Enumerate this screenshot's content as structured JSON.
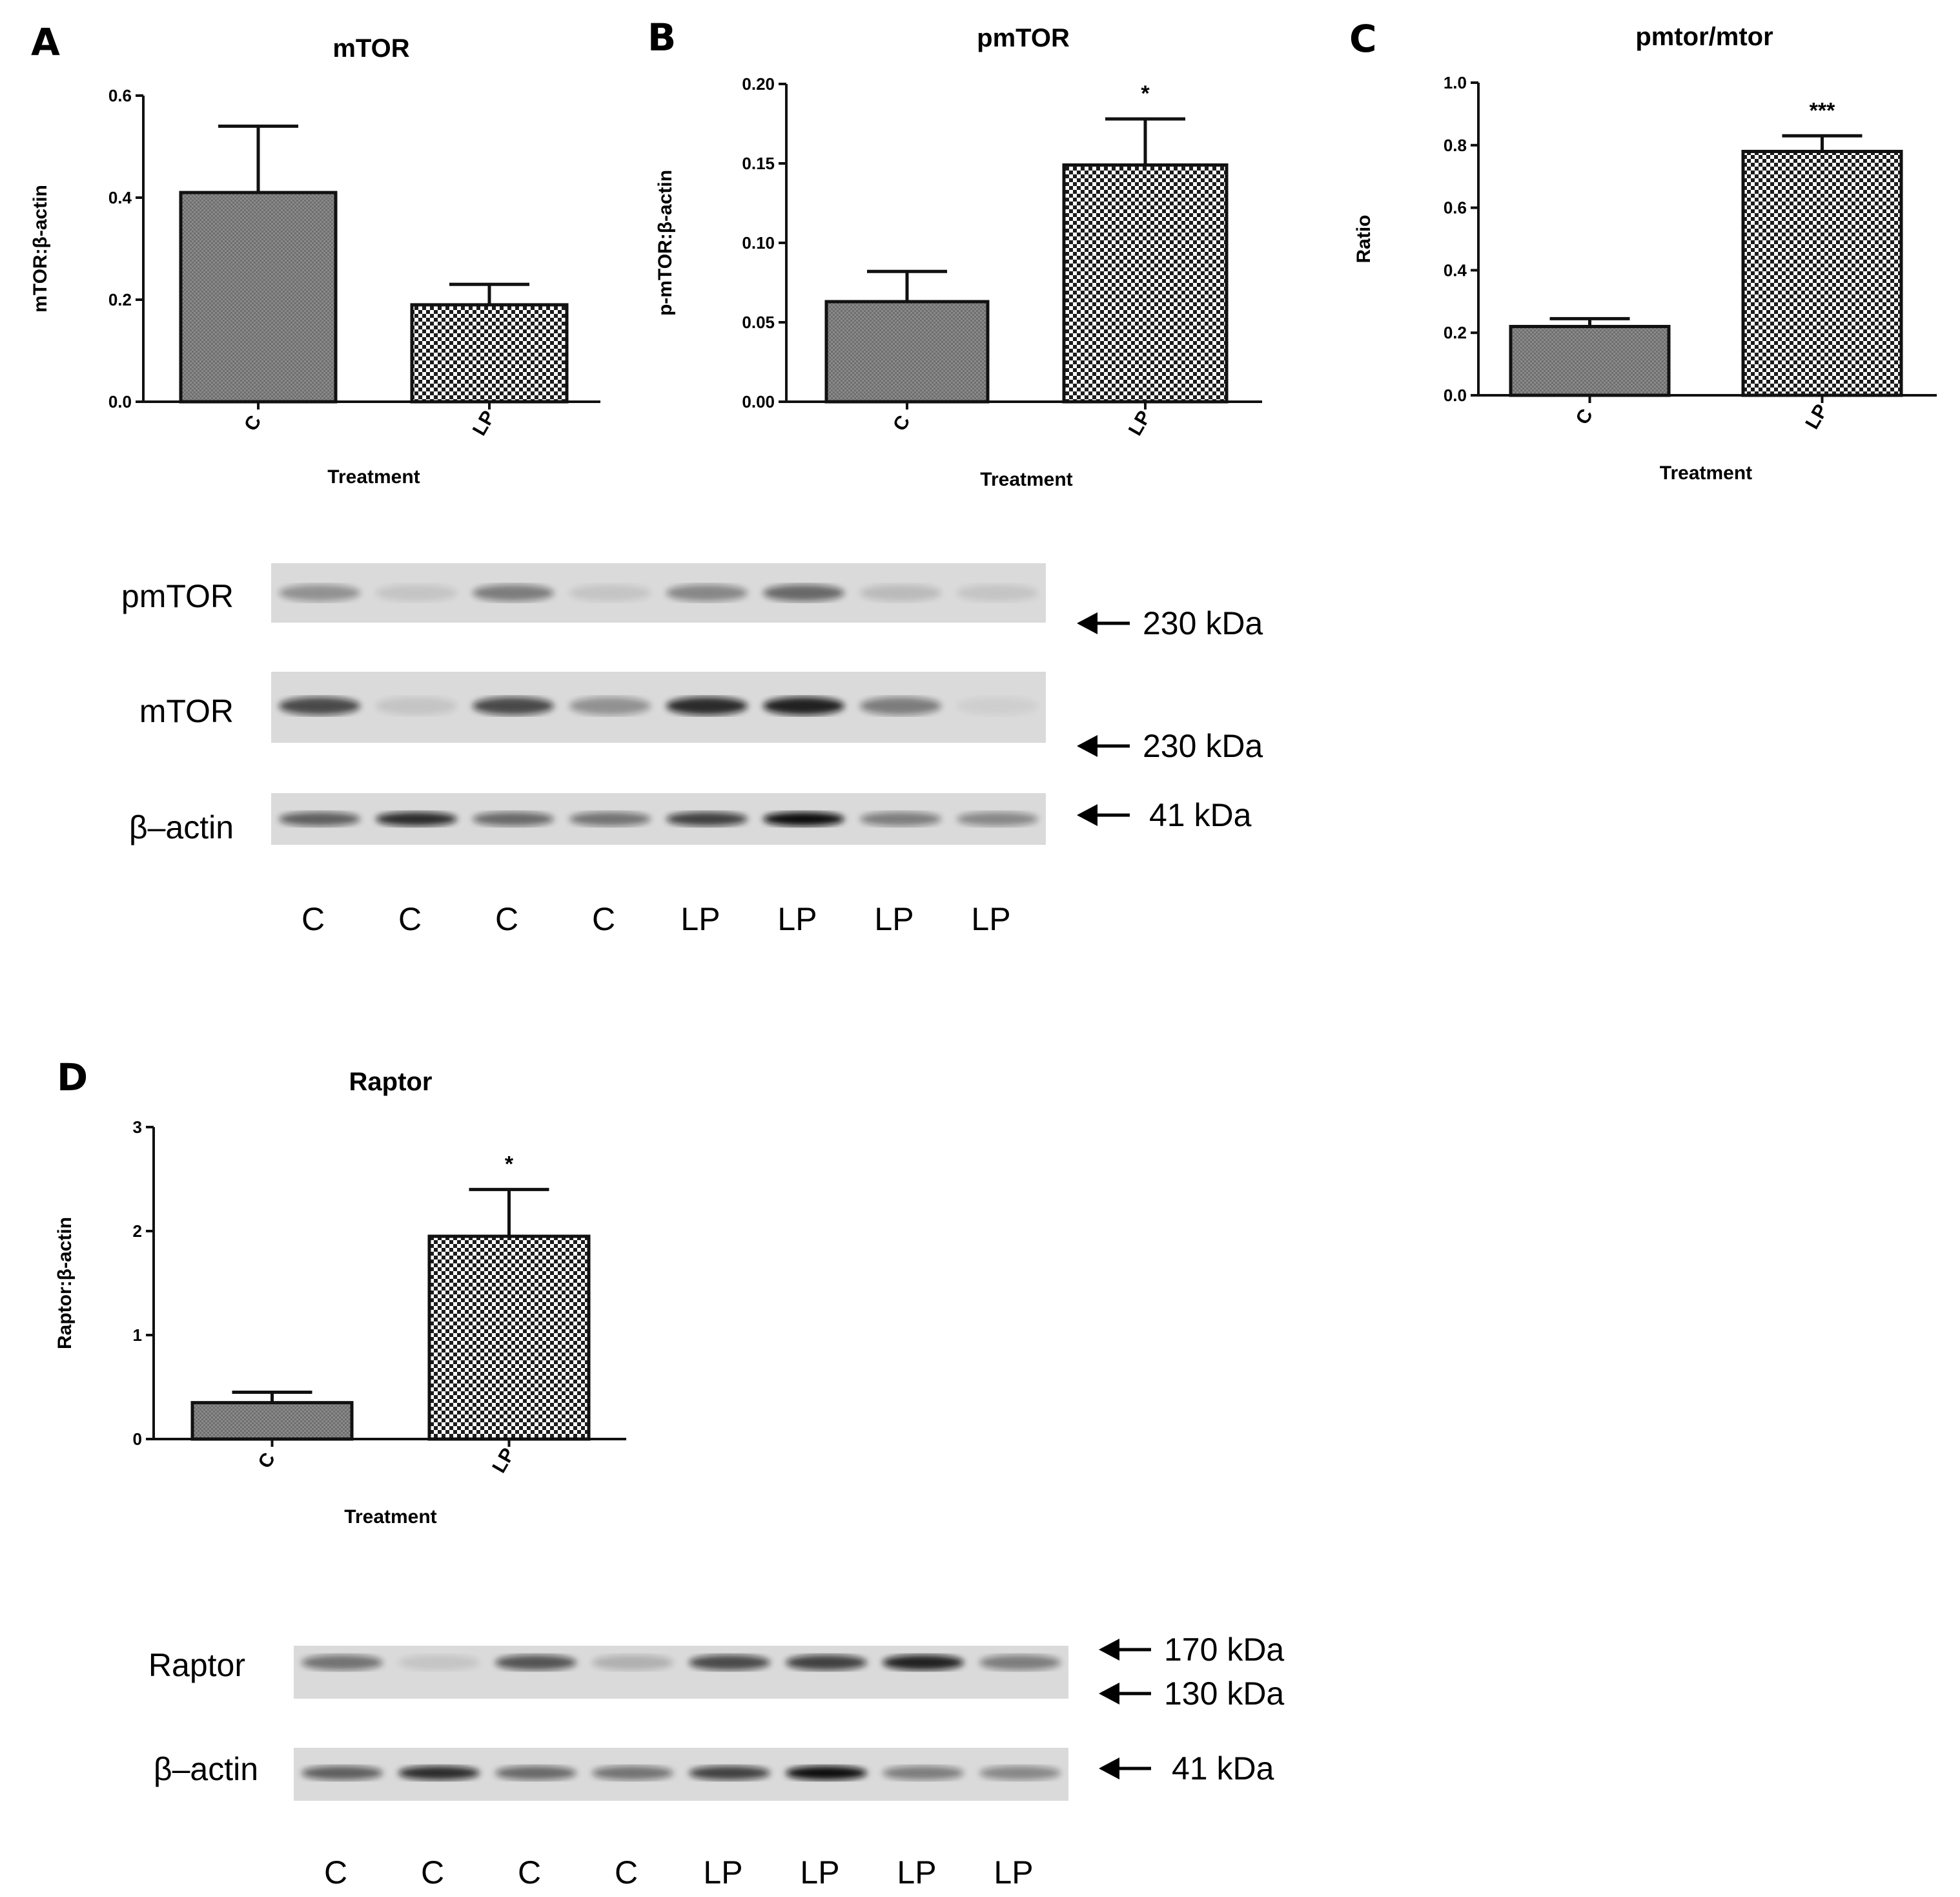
{
  "chart_data": [
    {
      "id": "A",
      "type": "bar",
      "panel": "A",
      "title": "mTOR",
      "xlabel": "Treatment",
      "ylabel": "mTOR:β-actin",
      "categories": [
        "C",
        "LP"
      ],
      "values": [
        0.41,
        0.19
      ],
      "errors": [
        0.13,
        0.04
      ],
      "significance": [
        "",
        ""
      ],
      "ylim": [
        0,
        0.6
      ],
      "yticks": [
        "0.0",
        "0.2",
        "0.4",
        "0.6"
      ],
      "ytick_values": [
        0,
        0.2,
        0.4,
        0.6
      ]
    },
    {
      "id": "B",
      "type": "bar",
      "panel": "B",
      "title": "pmTOR",
      "xlabel": "Treatment",
      "ylabel": "p-mTOR:β-actin",
      "categories": [
        "C",
        "LP"
      ],
      "values": [
        0.063,
        0.149
      ],
      "errors": [
        0.019,
        0.029
      ],
      "significance": [
        "",
        "*"
      ],
      "ylim": [
        0,
        0.2
      ],
      "yticks": [
        "0.00",
        "0.05",
        "0.10",
        "0.15",
        "0.20"
      ],
      "ytick_values": [
        0,
        0.05,
        0.1,
        0.15,
        0.2
      ]
    },
    {
      "id": "C",
      "type": "bar",
      "panel": "C",
      "title": "pmtor/mtor",
      "xlabel": "Treatment",
      "ylabel": "Ratio",
      "categories": [
        "C",
        "LP"
      ],
      "values": [
        0.22,
        0.78
      ],
      "errors": [
        0.025,
        0.05
      ],
      "significance": [
        "",
        "***"
      ],
      "ylim": [
        0,
        1.0
      ],
      "yticks": [
        "0.0",
        "0.2",
        "0.4",
        "0.6",
        "0.8",
        "1.0"
      ],
      "ytick_values": [
        0,
        0.2,
        0.4,
        0.6,
        0.8,
        1.0
      ]
    },
    {
      "id": "D",
      "type": "bar",
      "panel": "D",
      "title": "Raptor",
      "xlabel": "Treatment",
      "ylabel": "Raptor:β-actin",
      "categories": [
        "C",
        "LP"
      ],
      "values": [
        0.35,
        1.95
      ],
      "errors": [
        0.1,
        0.45
      ],
      "significance": [
        "",
        "*"
      ],
      "ylim": [
        0,
        3
      ],
      "yticks": [
        "0",
        "1",
        "2",
        "3"
      ],
      "ytick_values": [
        0,
        1,
        2,
        3
      ]
    }
  ],
  "blots": {
    "top": {
      "rows": [
        {
          "name": "pmTOR",
          "marker": "230 kDa",
          "intensities": [
            0.35,
            0.1,
            0.45,
            0.1,
            0.4,
            0.55,
            0.15,
            0.1
          ]
        },
        {
          "name": "mTOR",
          "marker": "230 kDa",
          "intensities": [
            0.7,
            0.1,
            0.7,
            0.35,
            0.85,
            0.9,
            0.45,
            0.05
          ]
        },
        {
          "name": "β–actin",
          "marker": "41 kDa",
          "intensities": [
            0.6,
            0.85,
            0.55,
            0.5,
            0.75,
            1.0,
            0.45,
            0.4
          ]
        }
      ],
      "lanes": [
        "C",
        "C",
        "C",
        "C",
        "LP",
        "LP",
        "LP",
        "LP"
      ]
    },
    "bottom": {
      "rows": [
        {
          "name": "Raptor",
          "markers": [
            "170 kDa",
            "130 kDa"
          ],
          "intensities": [
            0.5,
            0.1,
            0.65,
            0.2,
            0.7,
            0.75,
            0.9,
            0.45
          ]
        },
        {
          "name": "β–actin",
          "marker": "41 kDa",
          "intensities": [
            0.6,
            0.85,
            0.55,
            0.5,
            0.75,
            1.0,
            0.45,
            0.4
          ]
        }
      ],
      "lanes": [
        "C",
        "C",
        "C",
        "C",
        "LP",
        "LP",
        "LP",
        "LP"
      ]
    }
  },
  "colors": {
    "control_bar": "#7f7f7f",
    "lp_bar_light": "#ffffff",
    "lp_bar_dark": "#222222",
    "axis": "#111111",
    "blot_bg": "#dcdcdc",
    "band": "#111111"
  }
}
